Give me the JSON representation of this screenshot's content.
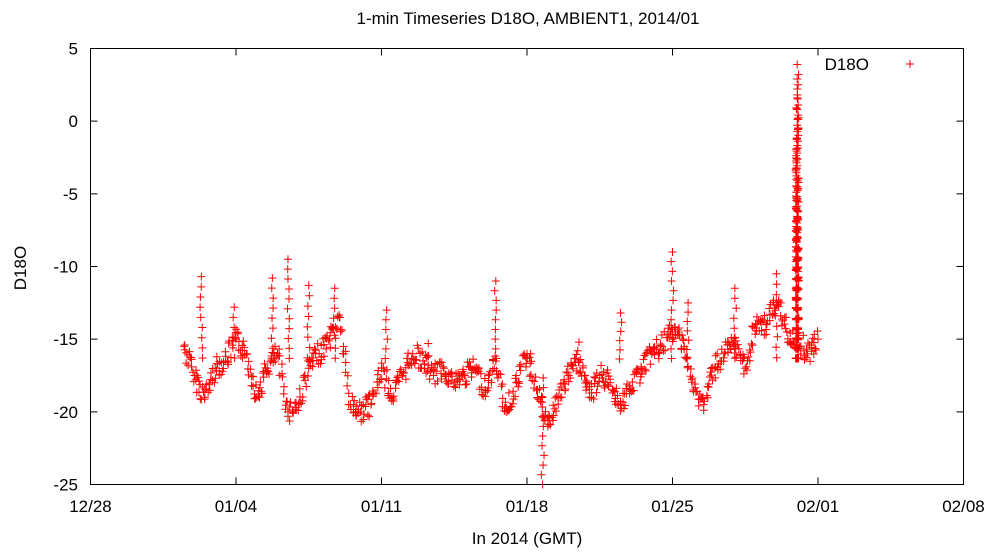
{
  "chart_data": {
    "type": "scatter",
    "title": "1-min Timeseries D18O, AMBIENT1, 2014/01",
    "xlabel": "In 2014 (GMT)",
    "ylabel": "D18O",
    "xlim": [
      "2013-12-28",
      "2014-02-08"
    ],
    "ylim": [
      -25,
      5
    ],
    "x_ticks": [
      "12/28",
      "01/04",
      "01/11",
      "01/18",
      "01/25",
      "02/01",
      "02/08"
    ],
    "y_ticks": [
      "5",
      "0",
      "-5",
      "-10",
      "-15",
      "-20",
      "-25"
    ],
    "grid": false,
    "legend": {
      "position": "top-right"
    },
    "marker": "plus",
    "series": [
      {
        "name": "D18O",
        "color": "#ff0000",
        "points": [
          [
            "2014-01-01T12:00",
            -15.5
          ],
          [
            "2014-01-02T00:00",
            -17.5
          ],
          [
            "2014-01-02T12:00",
            -19.0
          ],
          [
            "2014-01-03T00:00",
            -17.0
          ],
          [
            "2014-01-03T12:00",
            -16.5
          ],
          [
            "2014-01-04T00:00",
            -15.0
          ],
          [
            "2014-01-04T12:00",
            -16.0
          ],
          [
            "2014-01-05T00:00",
            -19.0
          ],
          [
            "2014-01-05T12:00",
            -17.0
          ],
          [
            "2014-01-06T00:00",
            -16.0
          ],
          [
            "2014-01-06T12:00",
            -20.0
          ],
          [
            "2014-01-07T00:00",
            -19.5
          ],
          [
            "2014-01-07T12:00",
            -17.0
          ],
          [
            "2014-01-08T00:00",
            -16.0
          ],
          [
            "2014-01-08T12:00",
            -15.0
          ],
          [
            "2014-01-09T00:00",
            -13.5
          ],
          [
            "2014-01-09T12:00",
            -19.5
          ],
          [
            "2014-01-10T00:00",
            -20.0
          ],
          [
            "2014-01-10T12:00",
            -19.5
          ],
          [
            "2014-01-11T00:00",
            -17.0
          ],
          [
            "2014-01-11T12:00",
            -19.0
          ],
          [
            "2014-01-12T00:00",
            -17.5
          ],
          [
            "2014-01-12T12:00",
            -16.0
          ],
          [
            "2014-01-13T00:00",
            -16.5
          ],
          [
            "2014-01-13T12:00",
            -17.5
          ],
          [
            "2014-01-14T00:00",
            -17.0
          ],
          [
            "2014-01-14T12:00",
            -18.0
          ],
          [
            "2014-01-15T00:00",
            -17.5
          ],
          [
            "2014-01-15T12:00",
            -17.0
          ],
          [
            "2014-01-16T00:00",
            -18.5
          ],
          [
            "2014-01-16T12:00",
            -16.5
          ],
          [
            "2014-01-17T00:00",
            -20.0
          ],
          [
            "2014-01-17T12:00",
            -18.0
          ],
          [
            "2014-01-18T00:00",
            -16.0
          ],
          [
            "2014-01-18T12:00",
            -18.5
          ],
          [
            "2014-01-19T00:00",
            -21.0
          ],
          [
            "2014-01-19T12:00",
            -19.0
          ],
          [
            "2014-01-20T00:00",
            -17.5
          ],
          [
            "2014-01-20T12:00",
            -16.5
          ],
          [
            "2014-01-21T00:00",
            -19.0
          ],
          [
            "2014-01-21T12:00",
            -17.5
          ],
          [
            "2014-01-22T00:00",
            -18.0
          ],
          [
            "2014-01-22T12:00",
            -19.5
          ],
          [
            "2014-01-23T00:00",
            -18.5
          ],
          [
            "2014-01-23T12:00",
            -17.0
          ],
          [
            "2014-01-24T00:00",
            -16.0
          ],
          [
            "2014-01-24T12:00",
            -15.5
          ],
          [
            "2014-01-25T00:00",
            -14.5
          ],
          [
            "2014-01-25T12:00",
            -15.0
          ],
          [
            "2014-01-26T00:00",
            -18.5
          ],
          [
            "2014-01-26T12:00",
            -19.5
          ],
          [
            "2014-01-27T00:00",
            -17.0
          ],
          [
            "2014-01-27T12:00",
            -16.0
          ],
          [
            "2014-01-28T00:00",
            -15.5
          ],
          [
            "2014-01-28T12:00",
            -17.0
          ],
          [
            "2014-01-29T00:00",
            -14.0
          ],
          [
            "2014-01-29T12:00",
            -14.0
          ],
          [
            "2014-01-30T00:00",
            -12.5
          ],
          [
            "2014-01-30T12:00",
            -14.5
          ],
          [
            "2014-01-31T00:00",
            -15.0
          ],
          [
            "2014-01-31T12:00",
            -16.0
          ],
          [
            "2014-02-01T00:00",
            -15.0
          ]
        ],
        "spikes": [
          [
            "2014-01-02T08:00",
            -10.7
          ],
          [
            "2014-01-03T22:00",
            -12.8
          ],
          [
            "2014-01-05T18:00",
            -10.8
          ],
          [
            "2014-01-06T12:00",
            -9.5
          ],
          [
            "2014-01-07T12:00",
            -11.3
          ],
          [
            "2014-01-08T18:00",
            -11.5
          ],
          [
            "2014-01-11T06:00",
            -13.0
          ],
          [
            "2014-01-13T06:00",
            -15.3
          ],
          [
            "2014-01-16T12:00",
            -11.0
          ],
          [
            "2014-01-18T18:00",
            -25.0
          ],
          [
            "2014-01-20T12:00",
            -15.2
          ],
          [
            "2014-01-22T12:00",
            -13.2
          ],
          [
            "2014-01-25T00:00",
            -9.0
          ],
          [
            "2014-01-25T18:00",
            -12.5
          ],
          [
            "2014-01-28T00:00",
            -11.5
          ],
          [
            "2014-01-30T00:00",
            -10.5
          ],
          [
            "2014-01-31T00:00",
            -13.0
          ],
          [
            "2014-01-31T00:00",
            -11.5
          ],
          [
            "2014-01-31T00:00",
            -9.5
          ],
          [
            "2014-01-31T00:00",
            -7.0
          ],
          [
            "2014-01-31T00:00",
            -5.5
          ],
          [
            "2014-01-31T00:00",
            -4.5
          ],
          [
            "2014-01-31T00:00",
            -2.2
          ],
          [
            "2014-01-31T00:00",
            -0.7
          ],
          [
            "2014-01-31T00:00",
            0.8
          ],
          [
            "2014-01-31T00:00",
            1.6
          ],
          [
            "2014-01-31T00:00",
            2.9
          ],
          [
            "2014-01-31T00:00",
            3.9
          ]
        ]
      }
    ]
  }
}
